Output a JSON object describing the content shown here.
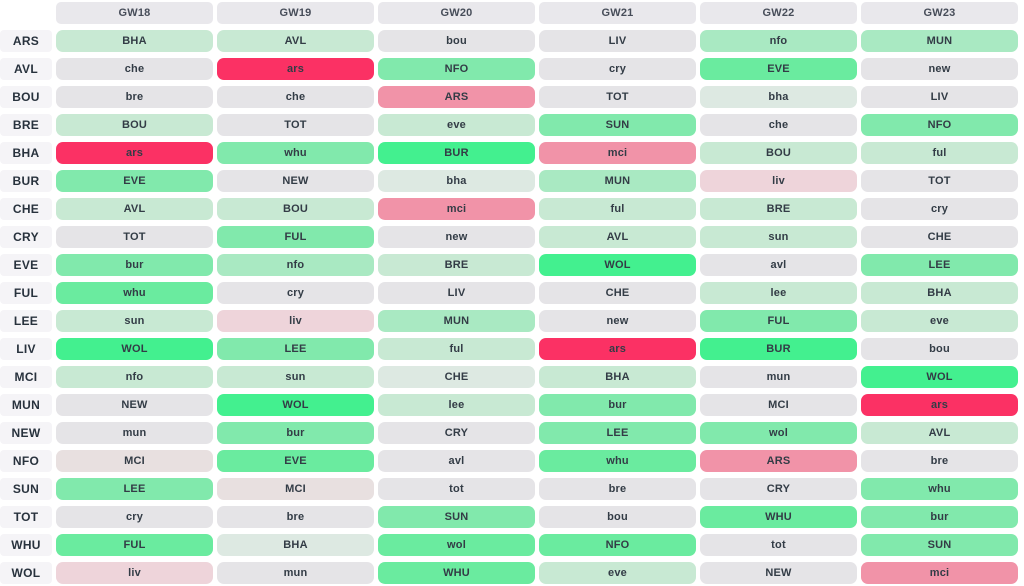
{
  "palette": {
    "g1": "#43f08f",
    "g2": "#6aeb9f",
    "g3": "#81e9ac",
    "g4": "#a9e9c2",
    "g5": "#c8e9d3",
    "g6": "#dde9e2",
    "gray": "#e5e4e7",
    "taupe": "#e8e0e0",
    "p1": "#eed4da",
    "p2": "#f193a8",
    "red": "#fb3164"
  },
  "chart_data": {
    "type": "heatmap",
    "description": "Fixture difficulty ticker: rows are teams, columns are gameweeks, each cell is the opponent (UPPERCASE = home, lowercase = away), cell color encodes fixture difficulty from easy (bright green) to hard (red).",
    "columns": [
      "GW18",
      "GW19",
      "GW20",
      "GW21",
      "GW22",
      "GW23"
    ],
    "rows": [
      {
        "team": "ARS",
        "fixtures": [
          {
            "opp": "BHA",
            "level": "g5"
          },
          {
            "opp": "AVL",
            "level": "g5"
          },
          {
            "opp": "bou",
            "level": "gray"
          },
          {
            "opp": "LIV",
            "level": "gray"
          },
          {
            "opp": "nfo",
            "level": "g4"
          },
          {
            "opp": "MUN",
            "level": "g4"
          }
        ]
      },
      {
        "team": "AVL",
        "fixtures": [
          {
            "opp": "che",
            "level": "gray"
          },
          {
            "opp": "ars",
            "level": "red"
          },
          {
            "opp": "NFO",
            "level": "g3"
          },
          {
            "opp": "cry",
            "level": "gray"
          },
          {
            "opp": "EVE",
            "level": "g2"
          },
          {
            "opp": "new",
            "level": "gray"
          }
        ]
      },
      {
        "team": "BOU",
        "fixtures": [
          {
            "opp": "bre",
            "level": "gray"
          },
          {
            "opp": "che",
            "level": "gray"
          },
          {
            "opp": "ARS",
            "level": "p2"
          },
          {
            "opp": "TOT",
            "level": "gray"
          },
          {
            "opp": "bha",
            "level": "g6"
          },
          {
            "opp": "LIV",
            "level": "gray"
          }
        ]
      },
      {
        "team": "BRE",
        "fixtures": [
          {
            "opp": "BOU",
            "level": "g5"
          },
          {
            "opp": "TOT",
            "level": "gray"
          },
          {
            "opp": "eve",
            "level": "g5"
          },
          {
            "opp": "SUN",
            "level": "g3"
          },
          {
            "opp": "che",
            "level": "gray"
          },
          {
            "opp": "NFO",
            "level": "g3"
          }
        ]
      },
      {
        "team": "BHA",
        "fixtures": [
          {
            "opp": "ars",
            "level": "red"
          },
          {
            "opp": "whu",
            "level": "g3"
          },
          {
            "opp": "BUR",
            "level": "g1"
          },
          {
            "opp": "mci",
            "level": "p2"
          },
          {
            "opp": "BOU",
            "level": "g5"
          },
          {
            "opp": "ful",
            "level": "g5"
          }
        ]
      },
      {
        "team": "BUR",
        "fixtures": [
          {
            "opp": "EVE",
            "level": "g3"
          },
          {
            "opp": "NEW",
            "level": "gray"
          },
          {
            "opp": "bha",
            "level": "g6"
          },
          {
            "opp": "MUN",
            "level": "g4"
          },
          {
            "opp": "liv",
            "level": "p1"
          },
          {
            "opp": "TOT",
            "level": "gray"
          }
        ]
      },
      {
        "team": "CHE",
        "fixtures": [
          {
            "opp": "AVL",
            "level": "g5"
          },
          {
            "opp": "BOU",
            "level": "g5"
          },
          {
            "opp": "mci",
            "level": "p2"
          },
          {
            "opp": "ful",
            "level": "g5"
          },
          {
            "opp": "BRE",
            "level": "g5"
          },
          {
            "opp": "cry",
            "level": "gray"
          }
        ]
      },
      {
        "team": "CRY",
        "fixtures": [
          {
            "opp": "TOT",
            "level": "gray"
          },
          {
            "opp": "FUL",
            "level": "g3"
          },
          {
            "opp": "new",
            "level": "gray"
          },
          {
            "opp": "AVL",
            "level": "g5"
          },
          {
            "opp": "sun",
            "level": "g5"
          },
          {
            "opp": "CHE",
            "level": "gray"
          }
        ]
      },
      {
        "team": "EVE",
        "fixtures": [
          {
            "opp": "bur",
            "level": "g3"
          },
          {
            "opp": "nfo",
            "level": "g4"
          },
          {
            "opp": "BRE",
            "level": "g5"
          },
          {
            "opp": "WOL",
            "level": "g1"
          },
          {
            "opp": "avl",
            "level": "gray"
          },
          {
            "opp": "LEE",
            "level": "g3"
          }
        ]
      },
      {
        "team": "FUL",
        "fixtures": [
          {
            "opp": "whu",
            "level": "g2"
          },
          {
            "opp": "cry",
            "level": "gray"
          },
          {
            "opp": "LIV",
            "level": "gray"
          },
          {
            "opp": "CHE",
            "level": "gray"
          },
          {
            "opp": "lee",
            "level": "g5"
          },
          {
            "opp": "BHA",
            "level": "g5"
          }
        ]
      },
      {
        "team": "LEE",
        "fixtures": [
          {
            "opp": "sun",
            "level": "g5"
          },
          {
            "opp": "liv",
            "level": "p1"
          },
          {
            "opp": "MUN",
            "level": "g4"
          },
          {
            "opp": "new",
            "level": "gray"
          },
          {
            "opp": "FUL",
            "level": "g3"
          },
          {
            "opp": "eve",
            "level": "g5"
          }
        ]
      },
      {
        "team": "LIV",
        "fixtures": [
          {
            "opp": "WOL",
            "level": "g1"
          },
          {
            "opp": "LEE",
            "level": "g3"
          },
          {
            "opp": "ful",
            "level": "g5"
          },
          {
            "opp": "ars",
            "level": "red"
          },
          {
            "opp": "BUR",
            "level": "g1"
          },
          {
            "opp": "bou",
            "level": "gray"
          }
        ]
      },
      {
        "team": "MCI",
        "fixtures": [
          {
            "opp": "nfo",
            "level": "g5"
          },
          {
            "opp": "sun",
            "level": "g5"
          },
          {
            "opp": "CHE",
            "level": "g6"
          },
          {
            "opp": "BHA",
            "level": "g5"
          },
          {
            "opp": "mun",
            "level": "gray"
          },
          {
            "opp": "WOL",
            "level": "g1"
          }
        ]
      },
      {
        "team": "MUN",
        "fixtures": [
          {
            "opp": "NEW",
            "level": "gray"
          },
          {
            "opp": "WOL",
            "level": "g1"
          },
          {
            "opp": "lee",
            "level": "g5"
          },
          {
            "opp": "bur",
            "level": "g3"
          },
          {
            "opp": "MCI",
            "level": "gray"
          },
          {
            "opp": "ars",
            "level": "red"
          }
        ]
      },
      {
        "team": "NEW",
        "fixtures": [
          {
            "opp": "mun",
            "level": "gray"
          },
          {
            "opp": "bur",
            "level": "g3"
          },
          {
            "opp": "CRY",
            "level": "gray"
          },
          {
            "opp": "LEE",
            "level": "g3"
          },
          {
            "opp": "wol",
            "level": "g3"
          },
          {
            "opp": "AVL",
            "level": "g5"
          }
        ]
      },
      {
        "team": "NFO",
        "fixtures": [
          {
            "opp": "MCI",
            "level": "taupe"
          },
          {
            "opp": "EVE",
            "level": "g2"
          },
          {
            "opp": "avl",
            "level": "gray"
          },
          {
            "opp": "whu",
            "level": "g2"
          },
          {
            "opp": "ARS",
            "level": "p2"
          },
          {
            "opp": "bre",
            "level": "gray"
          }
        ]
      },
      {
        "team": "SUN",
        "fixtures": [
          {
            "opp": "LEE",
            "level": "g3"
          },
          {
            "opp": "MCI",
            "level": "taupe"
          },
          {
            "opp": "tot",
            "level": "gray"
          },
          {
            "opp": "bre",
            "level": "gray"
          },
          {
            "opp": "CRY",
            "level": "gray"
          },
          {
            "opp": "whu",
            "level": "g3"
          }
        ]
      },
      {
        "team": "TOT",
        "fixtures": [
          {
            "opp": "cry",
            "level": "gray"
          },
          {
            "opp": "bre",
            "level": "gray"
          },
          {
            "opp": "SUN",
            "level": "g3"
          },
          {
            "opp": "bou",
            "level": "gray"
          },
          {
            "opp": "WHU",
            "level": "g2"
          },
          {
            "opp": "bur",
            "level": "g3"
          }
        ]
      },
      {
        "team": "WHU",
        "fixtures": [
          {
            "opp": "FUL",
            "level": "g2"
          },
          {
            "opp": "BHA",
            "level": "g6"
          },
          {
            "opp": "wol",
            "level": "g2"
          },
          {
            "opp": "NFO",
            "level": "g2"
          },
          {
            "opp": "tot",
            "level": "gray"
          },
          {
            "opp": "SUN",
            "level": "g3"
          }
        ]
      },
      {
        "team": "WOL",
        "fixtures": [
          {
            "opp": "liv",
            "level": "p1"
          },
          {
            "opp": "mun",
            "level": "gray"
          },
          {
            "opp": "WHU",
            "level": "g2"
          },
          {
            "opp": "eve",
            "level": "g5"
          },
          {
            "opp": "NEW",
            "level": "gray"
          },
          {
            "opp": "mci",
            "level": "p2"
          }
        ]
      }
    ]
  }
}
